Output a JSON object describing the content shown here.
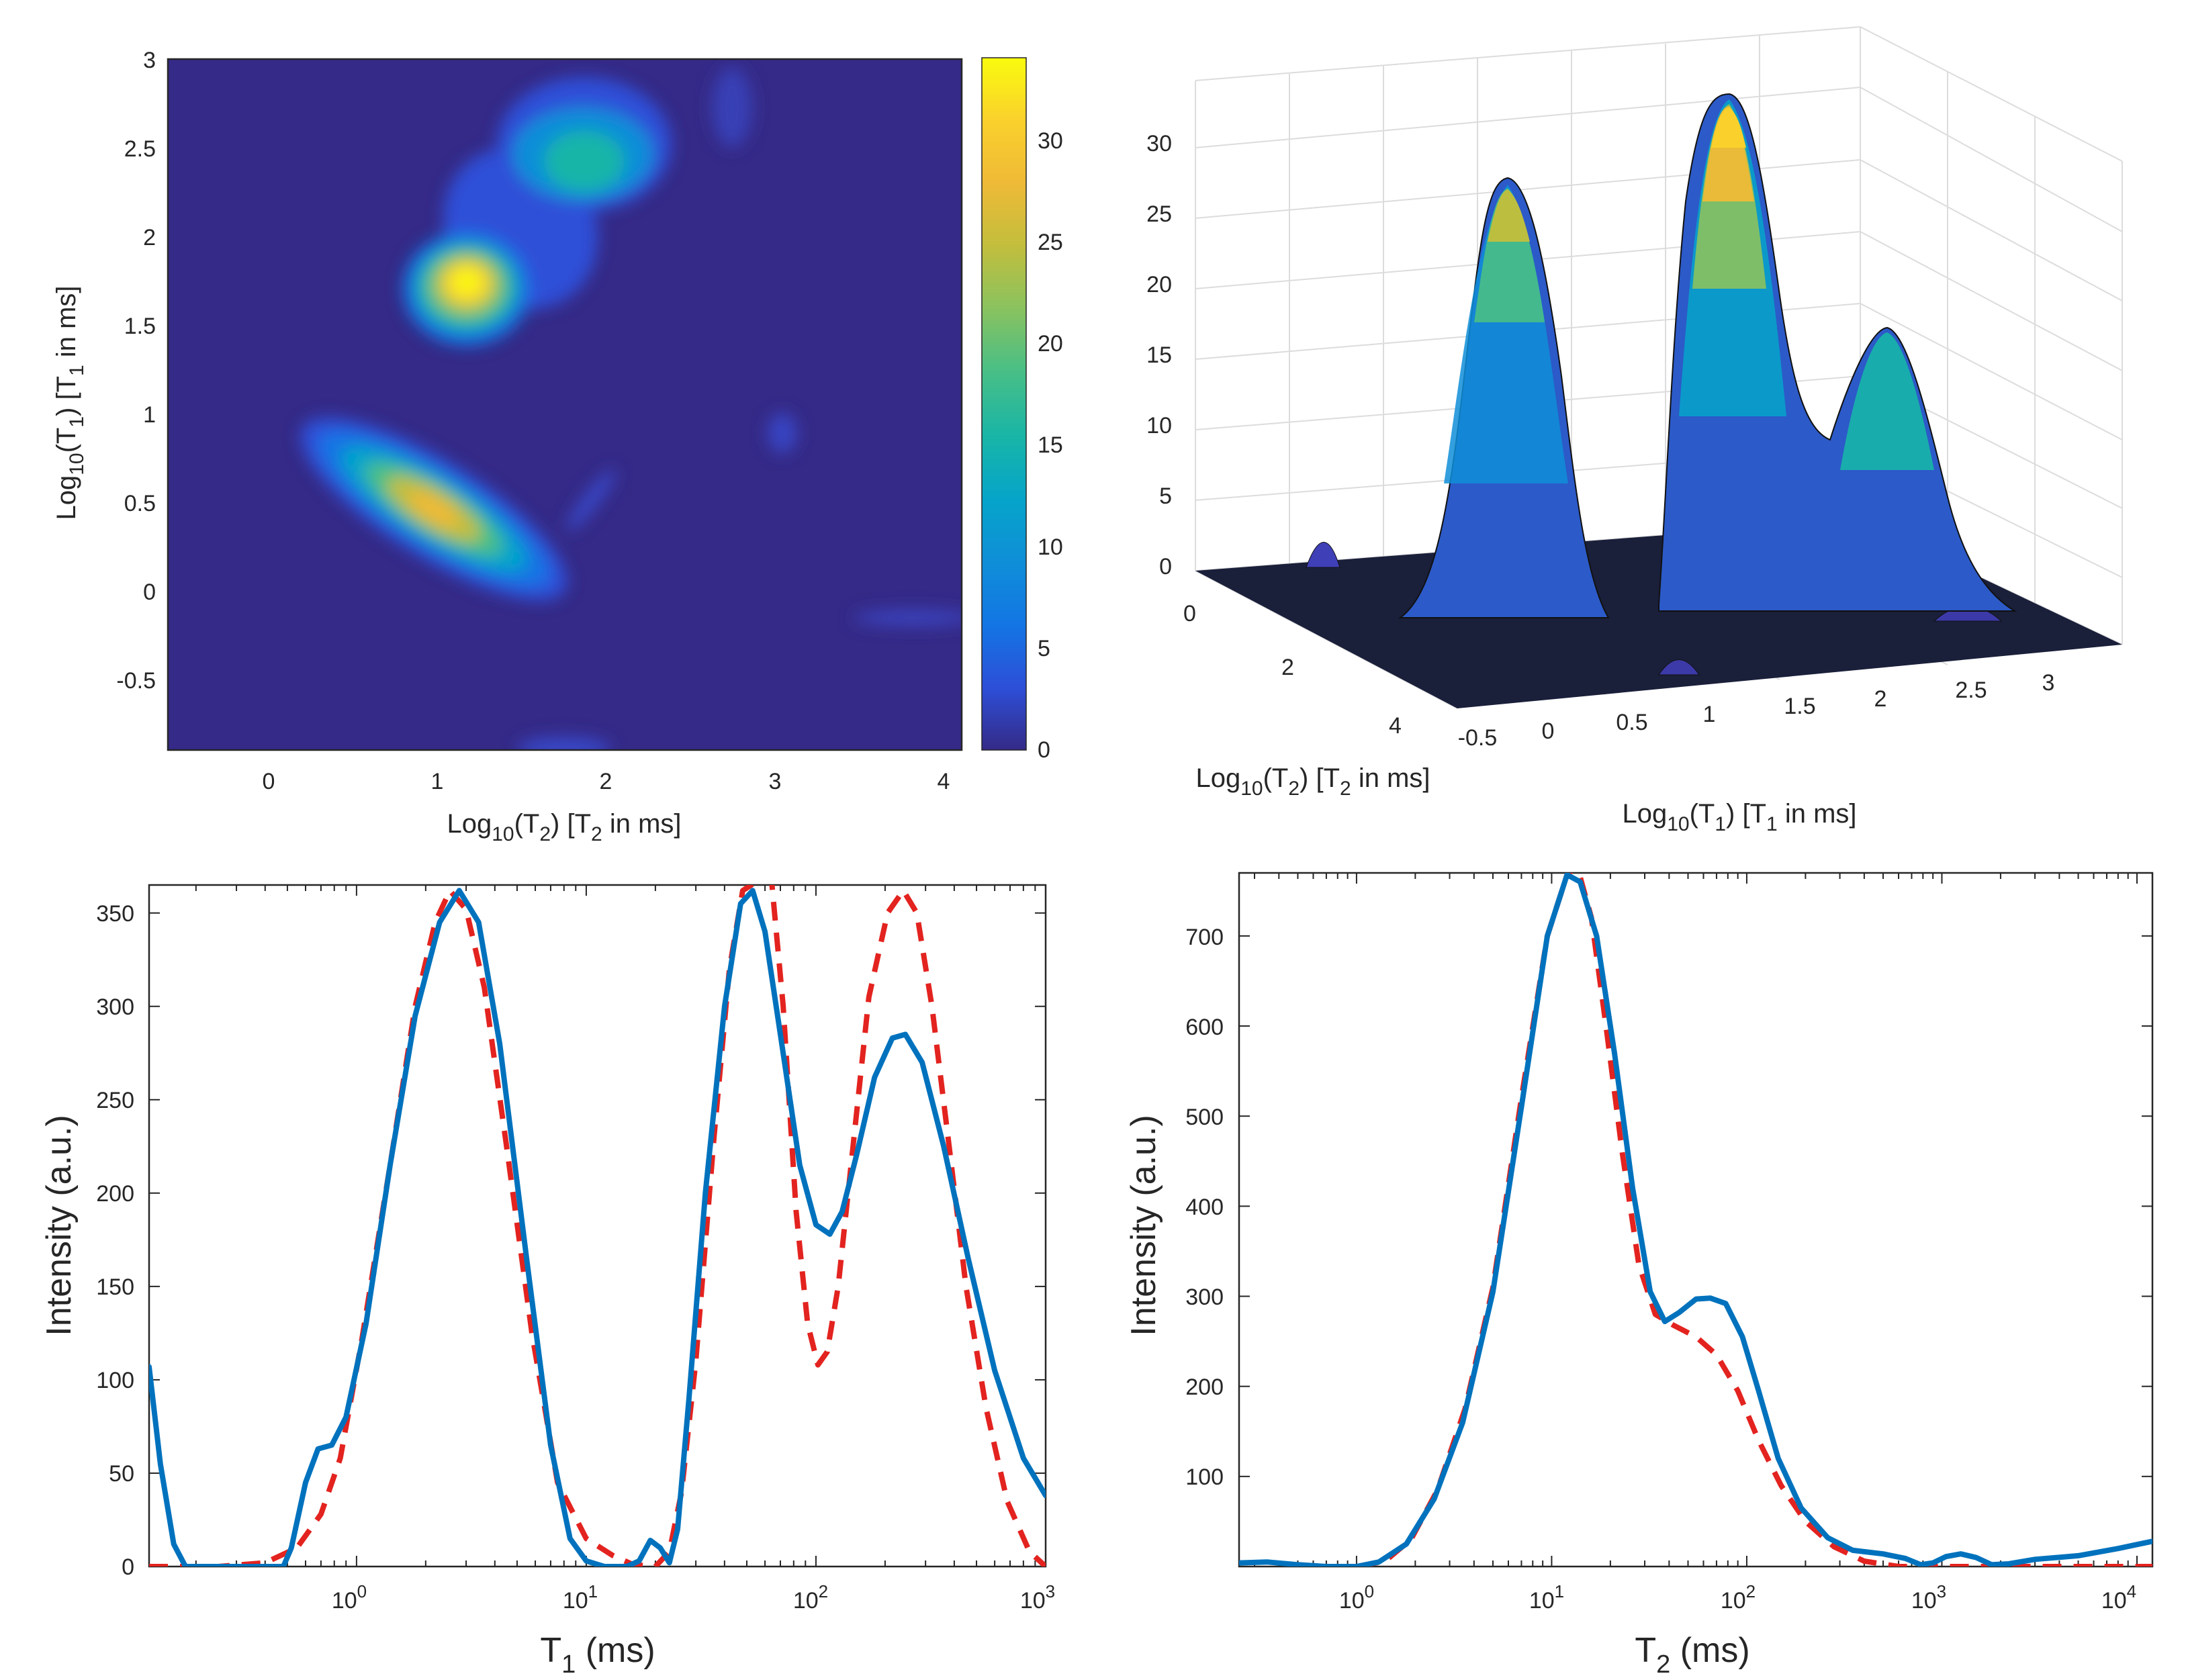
{
  "colors": {
    "blue_series": "#0072BD",
    "red_series": "#E3231F",
    "parula": [
      "#352A87",
      "#2D4FD8",
      "#1375E4",
      "#0F8ED8",
      "#06A4CA",
      "#17B5A8",
      "#4ABF85",
      "#8BC25E",
      "#C3BE3C",
      "#EFBA37",
      "#FAD12C",
      "#F9FB0E"
    ]
  },
  "chart_data": [
    {
      "id": "heatmap",
      "type": "heatmap",
      "xlabel": {
        "base": "Log",
        "sub": "10",
        "mid": "(T",
        "sub2": "2",
        "tail": ")  [T",
        "sub3": "2",
        "end": " in ms]"
      },
      "ylabel": {
        "base": "Log",
        "sub": "10",
        "mid": "(T",
        "sub2": "1",
        "tail": ")  [T",
        "sub3": "1",
        "end": " in ms]"
      },
      "xlim": [
        -0.6,
        4.1
      ],
      "ylim": [
        -0.9,
        3.0
      ],
      "xticks": [
        0,
        1,
        2,
        3,
        4
      ],
      "xtick_labels": [
        "0",
        "1",
        "2",
        "3",
        "4"
      ],
      "yticks": [
        -0.5,
        0,
        0.5,
        1,
        1.5,
        2,
        2.5,
        3
      ],
      "ytick_labels": [
        "-0.5",
        "0",
        "0.5",
        "1",
        "1.5",
        "2",
        "2.5",
        "3"
      ],
      "colorbar": {
        "ticks": [
          0,
          5,
          10,
          15,
          20,
          25,
          30
        ],
        "tick_labels": [
          "0",
          "5",
          "10",
          "15",
          "20",
          "25",
          "30"
        ],
        "max": 34
      },
      "peaks": [
        {
          "x": 0.98,
          "y": 0.42,
          "amplitude": 27,
          "note": "elongated diagonal peak"
        },
        {
          "x": 1.15,
          "y": 1.72,
          "amplitude": 32
        },
        {
          "x": 1.8,
          "y": 2.4,
          "amplitude": 17
        }
      ]
    },
    {
      "id": "surface3d",
      "type": "surface",
      "xlabel": {
        "base": "Log",
        "sub": "10",
        "mid": "(T",
        "sub2": "2",
        "tail": ")  [T",
        "sub3": "2",
        "end": " in ms]"
      },
      "ylabel": {
        "base": "Log",
        "sub": "10",
        "mid": "(T",
        "sub2": "1",
        "tail": ")  [T",
        "sub3": "1",
        "end": " in ms]"
      },
      "zticks": [
        0,
        5,
        10,
        15,
        20,
        25,
        30
      ],
      "ztick_labels": [
        "0",
        "5",
        "10",
        "15",
        "20",
        "25",
        "30"
      ],
      "t2_tick_labels": [
        "0",
        "2",
        "4"
      ],
      "t1_tick_labels": [
        "-0.5",
        "0",
        "0.5",
        "1",
        "1.5",
        "2",
        "2.5",
        "3"
      ],
      "peaks": [
        {
          "label": "left peak",
          "height": 26.5
        },
        {
          "label": "tall peak",
          "height": 32.5
        },
        {
          "label": "right peak",
          "height": 16.5
        },
        {
          "label": "small bump",
          "height": 3
        }
      ]
    },
    {
      "id": "t1dist",
      "type": "line",
      "xscale": "log",
      "xlim": [
        0.125,
        1000
      ],
      "ylim": [
        0,
        365
      ],
      "xlabel": {
        "main": "T",
        "sub": "1",
        "end": "  (ms)"
      },
      "ylabel": "Intensity (a.u.)",
      "xtick_exponents": [
        "0",
        "1",
        "2",
        "3"
      ],
      "xtick_base": "10",
      "yticks": [
        0,
        50,
        100,
        150,
        200,
        250,
        300,
        350
      ],
      "ytick_labels": [
        "0",
        "50",
        "100",
        "150",
        "200",
        "250",
        "300",
        "350"
      ],
      "series": [
        {
          "name": "solid",
          "style": "solid",
          "points": [
            [
              0.125,
              107
            ],
            [
              0.14,
              55
            ],
            [
              0.16,
              12
            ],
            [
              0.18,
              0
            ],
            [
              0.3,
              0
            ],
            [
              0.48,
              0
            ],
            [
              0.52,
              10
            ],
            [
              0.6,
              45
            ],
            [
              0.68,
              63
            ],
            [
              0.78,
              65
            ],
            [
              0.9,
              80
            ],
            [
              1.1,
              130
            ],
            [
              1.4,
              215
            ],
            [
              1.8,
              295
            ],
            [
              2.3,
              345
            ],
            [
              2.8,
              362
            ],
            [
              3.4,
              345
            ],
            [
              4.2,
              280
            ],
            [
              5.5,
              165
            ],
            [
              7,
              65
            ],
            [
              8.5,
              15
            ],
            [
              10,
              3
            ],
            [
              12,
              0
            ],
            [
              15,
              0
            ],
            [
              17,
              3
            ],
            [
              19,
              14
            ],
            [
              21,
              10
            ],
            [
              23,
              2
            ],
            [
              25,
              20
            ],
            [
              28,
              90
            ],
            [
              33,
              200
            ],
            [
              40,
              300
            ],
            [
              47,
              355
            ],
            [
              53,
              362
            ],
            [
              60,
              340
            ],
            [
              70,
              285
            ],
            [
              85,
              215
            ],
            [
              100,
              183
            ],
            [
              115,
              178
            ],
            [
              130,
              190
            ],
            [
              150,
              220
            ],
            [
              180,
              262
            ],
            [
              215,
              283
            ],
            [
              245,
              285
            ],
            [
              290,
              270
            ],
            [
              360,
              225
            ],
            [
              460,
              165
            ],
            [
              600,
              105
            ],
            [
              800,
              58
            ],
            [
              1000,
              38
            ]
          ]
        },
        {
          "name": "dashed",
          "style": "dashed",
          "points": [
            [
              0.125,
              0
            ],
            [
              0.25,
              0
            ],
            [
              0.4,
              2
            ],
            [
              0.55,
              10
            ],
            [
              0.7,
              28
            ],
            [
              0.85,
              58
            ],
            [
              1.05,
              120
            ],
            [
              1.4,
              215
            ],
            [
              1.8,
              300
            ],
            [
              2.2,
              345
            ],
            [
              2.55,
              362
            ],
            [
              3,
              352
            ],
            [
              3.6,
              310
            ],
            [
              4.5,
              225
            ],
            [
              5.8,
              125
            ],
            [
              7.5,
              45
            ],
            [
              10,
              15
            ],
            [
              13,
              6
            ],
            [
              16,
              1
            ],
            [
              20,
              0
            ],
            [
              23,
              8
            ],
            [
              26,
              40
            ],
            [
              30,
              110
            ],
            [
              36,
              230
            ],
            [
              42,
              320
            ],
            [
              48,
              362
            ],
            [
              57,
              368
            ],
            [
              64,
              368
            ],
            [
              72,
              300
            ],
            [
              82,
              190
            ],
            [
              92,
              130
            ],
            [
              102,
              108
            ],
            [
              112,
              115
            ],
            [
              125,
              150
            ],
            [
              145,
              225
            ],
            [
              170,
              305
            ],
            [
              205,
              350
            ],
            [
              240,
              362
            ],
            [
              275,
              350
            ],
            [
              320,
              300
            ],
            [
              380,
              225
            ],
            [
              450,
              150
            ],
            [
              550,
              85
            ],
            [
              680,
              35
            ],
            [
              850,
              8
            ],
            [
              1000,
              0
            ]
          ]
        }
      ]
    },
    {
      "id": "t2dist",
      "type": "line",
      "xscale": "log",
      "xlim": [
        0.25,
        12000
      ],
      "ylim": [
        0,
        770
      ],
      "xlabel": {
        "main": "T",
        "sub": "2",
        "end": "  (ms)"
      },
      "ylabel": "Intensity (a.u.)",
      "xtick_exponents": [
        "0",
        "1",
        "2",
        "3",
        "4"
      ],
      "xtick_base": "10",
      "yticks": [
        100,
        200,
        300,
        400,
        500,
        600,
        700
      ],
      "ytick_labels": [
        "100",
        "200",
        "300",
        "400",
        "500",
        "600",
        "700"
      ],
      "series": [
        {
          "name": "solid",
          "style": "solid",
          "points": [
            [
              0.25,
              4
            ],
            [
              0.35,
              5
            ],
            [
              0.5,
              2
            ],
            [
              0.7,
              0
            ],
            [
              1,
              0
            ],
            [
              1.3,
              5
            ],
            [
              1.8,
              25
            ],
            [
              2.5,
              75
            ],
            [
              3.5,
              160
            ],
            [
              5,
              305
            ],
            [
              7,
              510
            ],
            [
              9.5,
              700
            ],
            [
              12,
              768
            ],
            [
              14,
              760
            ],
            [
              17,
              700
            ],
            [
              21,
              570
            ],
            [
              26,
              420
            ],
            [
              32,
              305
            ],
            [
              38,
              272
            ],
            [
              45,
              282
            ],
            [
              55,
              297
            ],
            [
              65,
              298
            ],
            [
              78,
              292
            ],
            [
              95,
              255
            ],
            [
              115,
              195
            ],
            [
              145,
              120
            ],
            [
              190,
              65
            ],
            [
              260,
              32
            ],
            [
              350,
              18
            ],
            [
              500,
              14
            ],
            [
              650,
              9
            ],
            [
              780,
              2
            ],
            [
              900,
              4
            ],
            [
              1050,
              11
            ],
            [
              1250,
              14
            ],
            [
              1500,
              10
            ],
            [
              1800,
              2
            ],
            [
              2200,
              3
            ],
            [
              3000,
              8
            ],
            [
              5000,
              12
            ],
            [
              8000,
              20
            ],
            [
              12000,
              28
            ]
          ]
        },
        {
          "name": "dashed",
          "style": "dashed",
          "points": [
            [
              0.5,
              0
            ],
            [
              1,
              0
            ],
            [
              1.4,
              6
            ],
            [
              1.9,
              30
            ],
            [
              2.6,
              85
            ],
            [
              3.6,
              175
            ],
            [
              5,
              310
            ],
            [
              7,
              520
            ],
            [
              9.5,
              700
            ],
            [
              12,
              768
            ],
            [
              13.5,
              778
            ],
            [
              16,
              720
            ],
            [
              19,
              600
            ],
            [
              23,
              460
            ],
            [
              28,
              335
            ],
            [
              34,
              280
            ],
            [
              42,
              268
            ],
            [
              55,
              255
            ],
            [
              70,
              235
            ],
            [
              90,
              195
            ],
            [
              115,
              140
            ],
            [
              150,
              90
            ],
            [
              200,
              50
            ],
            [
              280,
              22
            ],
            [
              400,
              6
            ],
            [
              600,
              0
            ],
            [
              12000,
              0
            ]
          ]
        }
      ]
    }
  ]
}
